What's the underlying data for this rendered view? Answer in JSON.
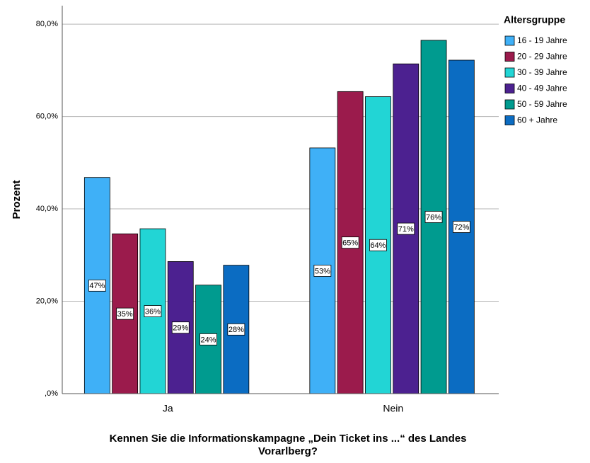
{
  "chart_data": {
    "type": "bar",
    "y_label": "Prozent",
    "x_label": [
      "Kennen Sie die Informationskampagne „Dein Ticket ins ...“ des Landes",
      "Vorarlberg?"
    ],
    "legend_title": "Altersgruppe",
    "legend": "right",
    "grid": true,
    "categories": [
      "Ja",
      "Nein"
    ],
    "series": [
      {
        "name": "16 - 19 Jahre",
        "color": "#3fb0f7",
        "values": [
          46.8,
          53.2
        ],
        "value_labels": [
          "47%",
          "53%"
        ]
      },
      {
        "name": "20 - 29 Jahre",
        "color": "#9b1b4c",
        "values": [
          34.6,
          65.4
        ],
        "value_labels": [
          "35%",
          "65%"
        ]
      },
      {
        "name": "30 - 39 Jahre",
        "color": "#22d5d5",
        "values": [
          35.7,
          64.3
        ],
        "value_labels": [
          "36%",
          "64%"
        ]
      },
      {
        "name": "40 - 49 Jahre",
        "color": "#4c2190",
        "values": [
          28.6,
          71.4
        ],
        "value_labels": [
          "29%",
          "71%"
        ]
      },
      {
        "name": "50 - 59 Jahre",
        "color": "#009b8f",
        "values": [
          23.5,
          76.5
        ],
        "value_labels": [
          "24%",
          "76%"
        ]
      },
      {
        "name": "60 + Jahre",
        "color": "#0b6cc2",
        "values": [
          27.8,
          72.2
        ],
        "value_labels": [
          "28%",
          "72%"
        ]
      }
    ],
    "ylim": [
      0,
      84
    ],
    "yticks": [
      {
        "value": 0,
        "label": ",0%"
      },
      {
        "value": 20,
        "label": "20,0%"
      },
      {
        "value": 40,
        "label": "40,0%"
      },
      {
        "value": 60,
        "label": "60,0%"
      },
      {
        "value": 80,
        "label": "80,0%"
      }
    ]
  }
}
